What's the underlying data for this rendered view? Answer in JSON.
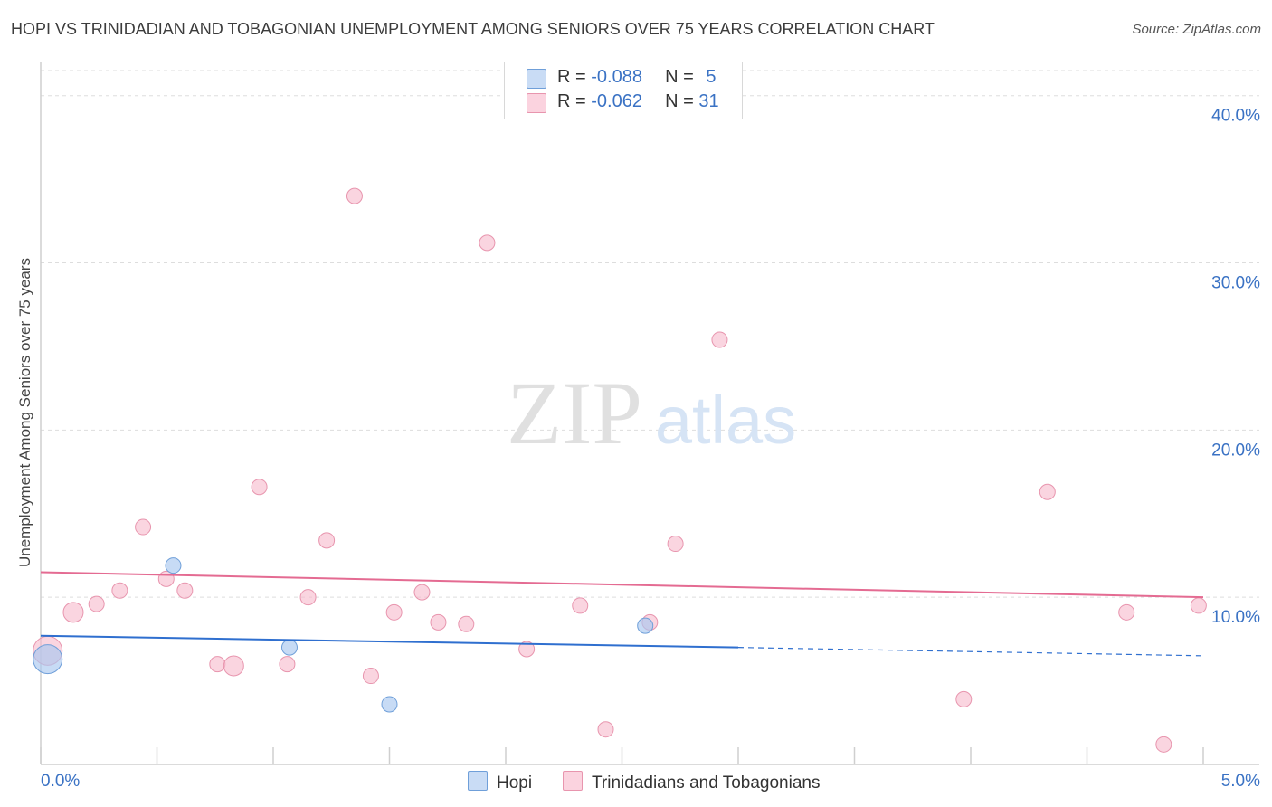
{
  "title": "HOPI VS TRINIDADIAN AND TOBAGONIAN UNEMPLOYMENT AMONG SENIORS OVER 75 YEARS CORRELATION CHART",
  "source": "Source: ZipAtlas.com",
  "watermark": {
    "zip": "ZIP",
    "atlas": "atlas"
  },
  "legend": {
    "rows": [
      {
        "r_label": "R = ",
        "r_value": "-0.088",
        "n_label": "N = ",
        "n_value": "5",
        "color": "#a9c8f0"
      },
      {
        "r_label": "R = ",
        "r_value": "-0.062",
        "n_label": "N = ",
        "n_value": "31",
        "color": "#f7b9cb"
      }
    ]
  },
  "bottom_legend": {
    "hopi": "Hopi",
    "trini": "Trinidadians and Tobagonians"
  },
  "colors": {
    "hopi_fill": "#a9c8f0",
    "hopi_stroke": "#6f9fd9",
    "hopi_line": "#2f6fcf",
    "trini_fill": "#f7b9cb",
    "trini_stroke": "#e895ae",
    "trini_line": "#e46b92",
    "axis_text": "#3a72c4",
    "grid": "#dddddd"
  },
  "chart_data": {
    "type": "scatter",
    "title": "HOPI VS TRINIDADIAN AND TOBAGONIAN UNEMPLOYMENT AMONG SENIORS OVER 75 YEARS CORRELATION CHART",
    "xlabel": "",
    "ylabel": "Unemployment Among Seniors over 75 years",
    "xlim": [
      0,
      5
    ],
    "ylim": [
      0,
      41.5
    ],
    "x_tick_labels": [
      "0.0%",
      "5.0%"
    ],
    "y_ticks": [
      10,
      20,
      30,
      40
    ],
    "y_tick_labels": [
      "10.0%",
      "20.0%",
      "30.0%",
      "40.0%"
    ],
    "grid": true,
    "series": [
      {
        "name": "Hopi",
        "points": [
          {
            "x": 0.03,
            "y": 6.3,
            "size": "large"
          },
          {
            "x": 0.57,
            "y": 11.9
          },
          {
            "x": 1.07,
            "y": 7.0
          },
          {
            "x": 1.5,
            "y": 3.6
          },
          {
            "x": 2.6,
            "y": 8.3
          }
        ],
        "trend": {
          "x1": 0.0,
          "y1": 7.7,
          "x2": 3.0,
          "y2": 7.0,
          "dash_x2": 5.0,
          "dash_y2": 6.5
        }
      },
      {
        "name": "Trinidadians and Tobagonians",
        "points": [
          {
            "x": 0.03,
            "y": 6.8,
            "size": "large"
          },
          {
            "x": 0.14,
            "y": 9.1,
            "size": "medium"
          },
          {
            "x": 0.24,
            "y": 9.6
          },
          {
            "x": 0.34,
            "y": 10.4
          },
          {
            "x": 0.44,
            "y": 14.2
          },
          {
            "x": 0.54,
            "y": 11.1
          },
          {
            "x": 0.62,
            "y": 10.4
          },
          {
            "x": 0.76,
            "y": 6.0
          },
          {
            "x": 0.83,
            "y": 5.9,
            "size": "medium"
          },
          {
            "x": 0.94,
            "y": 16.6
          },
          {
            "x": 1.06,
            "y": 6.0
          },
          {
            "x": 1.15,
            "y": 10.0
          },
          {
            "x": 1.23,
            "y": 13.4
          },
          {
            "x": 1.35,
            "y": 34.0
          },
          {
            "x": 1.42,
            "y": 5.3
          },
          {
            "x": 1.52,
            "y": 9.1
          },
          {
            "x": 1.64,
            "y": 10.3
          },
          {
            "x": 1.71,
            "y": 8.5
          },
          {
            "x": 1.83,
            "y": 8.4
          },
          {
            "x": 1.92,
            "y": 31.2
          },
          {
            "x": 2.09,
            "y": 6.9
          },
          {
            "x": 2.32,
            "y": 9.5
          },
          {
            "x": 2.43,
            "y": 2.1
          },
          {
            "x": 2.62,
            "y": 8.5
          },
          {
            "x": 2.73,
            "y": 13.2
          },
          {
            "x": 2.92,
            "y": 25.4
          },
          {
            "x": 3.97,
            "y": 3.9
          },
          {
            "x": 4.33,
            "y": 16.3
          },
          {
            "x": 4.67,
            "y": 9.1
          },
          {
            "x": 4.83,
            "y": 1.2
          },
          {
            "x": 4.98,
            "y": 9.5
          }
        ],
        "trend": {
          "x1": 0.0,
          "y1": 11.5,
          "x2": 5.0,
          "y2": 10.0
        }
      }
    ]
  }
}
